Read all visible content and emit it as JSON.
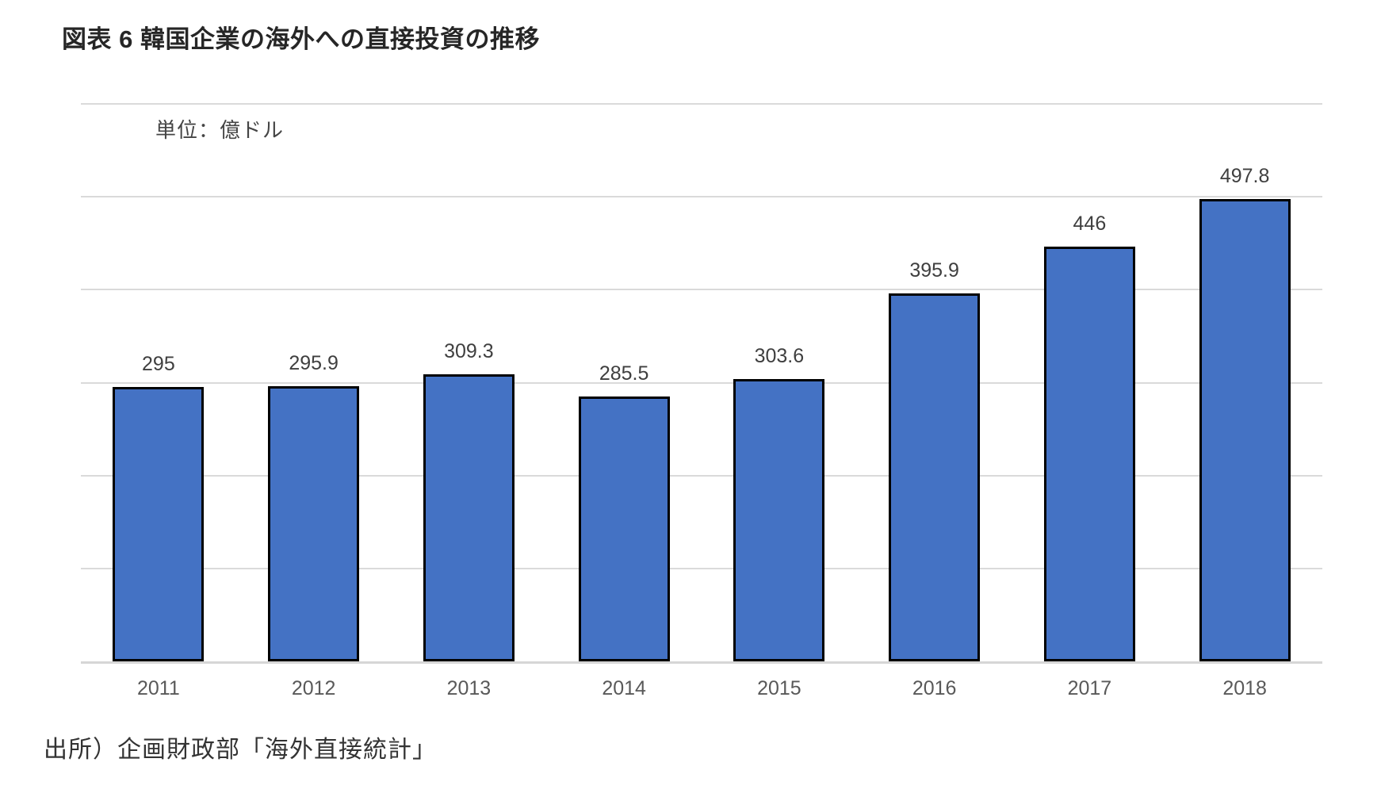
{
  "title": "図表 6 韓国企業の海外への直接投資の推移",
  "unit_label": "単位：億ドル",
  "source": "出所）企画財政部「海外直接統計」",
  "colors": {
    "bar_fill": "#4472C4",
    "bar_border": "#000000",
    "gridline": "#DADADA",
    "axis_line": "#D6D6D6",
    "value_label": "#3F3F3F",
    "tick_label": "#595959",
    "title_text": "#262626"
  },
  "chart_data": {
    "type": "bar",
    "title": "図表 6 韓国企業の海外への直接投資の推移",
    "unit": "億ドル",
    "categories": [
      "2011",
      "2012",
      "2013",
      "2014",
      "2015",
      "2016",
      "2017",
      "2018"
    ],
    "values": [
      295,
      295.9,
      309.3,
      285.5,
      303.6,
      395.9,
      446,
      497.8
    ],
    "value_labels": [
      "295",
      "295.9",
      "309.3",
      "285.5",
      "303.6",
      "395.9",
      "446",
      "497.8"
    ],
    "xlabel": "",
    "ylabel": "単位：億ドル",
    "ylim": [
      0,
      600
    ],
    "grid_step": 100,
    "grid": "horizontal-only",
    "legend_position": "none",
    "data_labels_position": "above-bars",
    "source_note": "出所）企画財政部「海外直接統計」"
  }
}
